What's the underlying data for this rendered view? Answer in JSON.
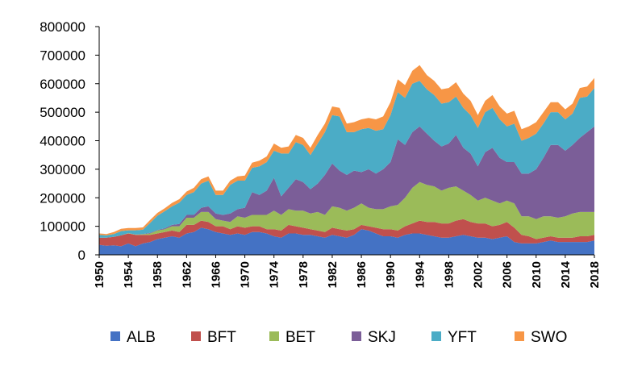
{
  "chart_data": {
    "type": "area",
    "stacked": true,
    "title": "",
    "xlabel": "",
    "ylabel": "",
    "ylim": [
      0,
      800000
    ],
    "yticks": [
      0,
      100000,
      200000,
      300000,
      400000,
      500000,
      600000,
      700000,
      800000
    ],
    "ytick_labels": [
      "0",
      "100000",
      "200000",
      "300000",
      "400000",
      "500000",
      "600000",
      "700000",
      "800000"
    ],
    "xticks": [
      1950,
      1954,
      1958,
      1962,
      1966,
      1970,
      1974,
      1978,
      1982,
      1986,
      1990,
      1994,
      1998,
      2002,
      2006,
      2010,
      2014,
      2018
    ],
    "xtick_labels": [
      "1950",
      "1954",
      "1958",
      "1962",
      "1966",
      "1970",
      "1974",
      "1978",
      "1982",
      "1986",
      "1990",
      "1994",
      "1998",
      "2002",
      "2006",
      "2010",
      "2014",
      "2018"
    ],
    "grid": false,
    "legend_position": "bottom",
    "x": [
      1950,
      1951,
      1952,
      1953,
      1954,
      1955,
      1956,
      1957,
      1958,
      1959,
      1960,
      1961,
      1962,
      1963,
      1964,
      1965,
      1966,
      1967,
      1968,
      1969,
      1970,
      1971,
      1972,
      1973,
      1974,
      1975,
      1976,
      1977,
      1978,
      1979,
      1980,
      1981,
      1982,
      1983,
      1984,
      1985,
      1986,
      1987,
      1988,
      1989,
      1990,
      1991,
      1992,
      1993,
      1994,
      1995,
      1996,
      1997,
      1998,
      1999,
      2000,
      2001,
      2002,
      2003,
      2004,
      2005,
      2006,
      2007,
      2008,
      2009,
      2010,
      2011,
      2012,
      2013,
      2014,
      2015,
      2016,
      2017,
      2018
    ],
    "series": [
      {
        "name": "ALB",
        "color": "#4472C4",
        "values": [
          35000,
          32000,
          33000,
          30000,
          40000,
          30000,
          40000,
          45000,
          55000,
          60000,
          65000,
          60000,
          75000,
          80000,
          95000,
          90000,
          80000,
          75000,
          70000,
          75000,
          70000,
          80000,
          80000,
          75000,
          65000,
          60000,
          75000,
          75000,
          70000,
          70000,
          65000,
          60000,
          70000,
          65000,
          60000,
          70000,
          90000,
          85000,
          75000,
          65000,
          65000,
          60000,
          70000,
          75000,
          75000,
          70000,
          65000,
          60000,
          60000,
          65000,
          70000,
          65000,
          60000,
          60000,
          55000,
          60000,
          65000,
          45000,
          40000,
          40000,
          40000,
          45000,
          50000,
          45000,
          45000,
          45000,
          45000,
          45000,
          50000
        ]
      },
      {
        "name": "BFT",
        "color": "#C0504D",
        "values": [
          25000,
          28000,
          30000,
          38000,
          35000,
          40000,
          30000,
          25000,
          20000,
          20000,
          20000,
          20000,
          30000,
          25000,
          25000,
          25000,
          20000,
          25000,
          20000,
          25000,
          25000,
          20000,
          20000,
          15000,
          25000,
          25000,
          30000,
          25000,
          25000,
          20000,
          20000,
          20000,
          25000,
          25000,
          25000,
          20000,
          15000,
          15000,
          20000,
          25000,
          25000,
          25000,
          30000,
          35000,
          45000,
          45000,
          50000,
          50000,
          50000,
          55000,
          55000,
          50000,
          50000,
          50000,
          45000,
          45000,
          50000,
          50000,
          30000,
          25000,
          15000,
          15000,
          15000,
          15000,
          15000,
          15000,
          20000,
          20000,
          20000
        ]
      },
      {
        "name": "BET",
        "color": "#9BBB59",
        "values": [
          0,
          0,
          0,
          0,
          1000,
          1000,
          2000,
          5000,
          10000,
          10000,
          15000,
          20000,
          25000,
          25000,
          30000,
          35000,
          25000,
          20000,
          25000,
          35000,
          35000,
          40000,
          40000,
          50000,
          65000,
          55000,
          55000,
          55000,
          60000,
          55000,
          65000,
          60000,
          75000,
          75000,
          70000,
          75000,
          75000,
          65000,
          65000,
          70000,
          80000,
          90000,
          100000,
          125000,
          135000,
          130000,
          125000,
          115000,
          125000,
          120000,
          100000,
          95000,
          80000,
          90000,
          90000,
          75000,
          75000,
          85000,
          65000,
          70000,
          70000,
          75000,
          70000,
          70000,
          75000,
          85000,
          85000,
          85000,
          80000
        ]
      },
      {
        "name": "SKJ",
        "color": "#7B5E98",
        "values": [
          0,
          0,
          0,
          0,
          0,
          0,
          1000,
          2000,
          2000,
          3000,
          5000,
          8000,
          10000,
          10000,
          15000,
          20000,
          20000,
          20000,
          30000,
          25000,
          35000,
          80000,
          70000,
          85000,
          115000,
          65000,
          75000,
          110000,
          100000,
          85000,
          100000,
          140000,
          150000,
          130000,
          125000,
          130000,
          110000,
          135000,
          125000,
          140000,
          155000,
          230000,
          185000,
          195000,
          195000,
          180000,
          160000,
          155000,
          155000,
          180000,
          150000,
          145000,
          120000,
          160000,
          185000,
          160000,
          135000,
          145000,
          150000,
          150000,
          175000,
          205000,
          250000,
          255000,
          230000,
          240000,
          260000,
          280000,
          300000
        ]
      },
      {
        "name": "YFT",
        "color": "#4BACC6",
        "values": [
          10000,
          8000,
          10000,
          15000,
          10000,
          15000,
          15000,
          35000,
          50000,
          60000,
          65000,
          75000,
          70000,
          80000,
          85000,
          90000,
          65000,
          70000,
          100000,
          100000,
          95000,
          85000,
          100000,
          100000,
          95000,
          150000,
          120000,
          130000,
          130000,
          120000,
          140000,
          150000,
          170000,
          190000,
          150000,
          135000,
          150000,
          145000,
          150000,
          140000,
          165000,
          165000,
          165000,
          170000,
          160000,
          155000,
          160000,
          150000,
          145000,
          135000,
          140000,
          135000,
          135000,
          140000,
          140000,
          135000,
          125000,
          135000,
          115000,
          125000,
          125000,
          120000,
          115000,
          115000,
          110000,
          110000,
          140000,
          125000,
          135000
        ]
      },
      {
        "name": "SWO",
        "color": "#F79646",
        "values": [
          5000,
          5000,
          7000,
          8000,
          8000,
          8000,
          8000,
          10000,
          10000,
          10000,
          12000,
          12000,
          12000,
          15000,
          15000,
          15000,
          15000,
          15000,
          15000,
          15000,
          18000,
          18000,
          20000,
          20000,
          25000,
          20000,
          25000,
          25000,
          25000,
          25000,
          30000,
          30000,
          30000,
          30000,
          30000,
          35000,
          35000,
          35000,
          40000,
          45000,
          45000,
          45000,
          45000,
          45000,
          55000,
          50000,
          50000,
          50000,
          50000,
          50000,
          50000,
          50000,
          45000,
          40000,
          45000,
          45000,
          45000,
          45000,
          40000,
          40000,
          40000,
          40000,
          35000,
          35000,
          35000,
          35000,
          35000,
          35000,
          35000
        ]
      }
    ]
  }
}
